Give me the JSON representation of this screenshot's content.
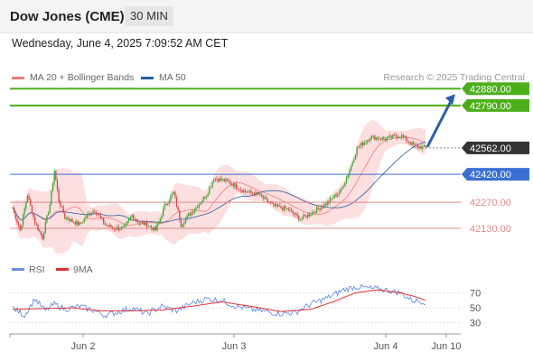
{
  "header": {
    "title": "Dow Jones (CME)",
    "timeframe": "30 MIN"
  },
  "datetime": "Wednesday, June 4, 2025 7:09:52 AM CET",
  "credit": "Research © 2025 Trading Central",
  "colors": {
    "resistance": "#4caf1a",
    "support": "#3b6fd4",
    "minor": "#e08a8a",
    "current": "#333333",
    "arrow": "#2f5fa8",
    "up_candle": "#3aa832",
    "down_candle": "#d64545"
  },
  "chart_data": [
    {
      "type": "candlestick",
      "legend": [
        {
          "name": "MA 20 + Bollinger Bands",
          "color": "#f07a7a"
        },
        {
          "name": "MA 50",
          "color": "#2b5da0"
        }
      ],
      "x_ticks": [
        "Jun 2",
        "Jun 3",
        "Jun 4",
        "Jun 10"
      ],
      "y_range": [
        41960,
        42920
      ],
      "levels": [
        {
          "value": 42880.0,
          "label": "42880.00",
          "kind": "resistance"
        },
        {
          "value": 42790.0,
          "label": "42790.00",
          "kind": "resistance"
        },
        {
          "value": 42562.0,
          "label": "42562.00",
          "kind": "current"
        },
        {
          "value": 42420.0,
          "label": "42420.00",
          "kind": "support"
        },
        {
          "value": 42270.0,
          "label": "42270.00",
          "kind": "minor"
        },
        {
          "value": 42130.0,
          "label": "42130.00",
          "kind": "minor"
        }
      ],
      "price_anchors": [
        [
          0,
          42240
        ],
        [
          5,
          42120
        ],
        [
          10,
          42310
        ],
        [
          15,
          42160
        ],
        [
          20,
          42080
        ],
        [
          25,
          42260
        ],
        [
          28,
          42440
        ],
        [
          31,
          42280
        ],
        [
          35,
          42190
        ],
        [
          40,
          42170
        ],
        [
          45,
          42150
        ],
        [
          50,
          42200
        ],
        [
          55,
          42230
        ],
        [
          62,
          42150
        ],
        [
          68,
          42130
        ],
        [
          75,
          42130
        ],
        [
          80,
          42200
        ],
        [
          85,
          42160
        ],
        [
          90,
          42150
        ],
        [
          96,
          42120
        ],
        [
          102,
          42250
        ],
        [
          108,
          42320
        ],
        [
          113,
          42150
        ],
        [
          118,
          42200
        ],
        [
          125,
          42260
        ],
        [
          130,
          42310
        ],
        [
          135,
          42400
        ],
        [
          145,
          42380
        ],
        [
          155,
          42330
        ],
        [
          165,
          42310
        ],
        [
          175,
          42250
        ],
        [
          185,
          42230
        ],
        [
          193,
          42180
        ],
        [
          200,
          42210
        ],
        [
          210,
          42260
        ],
        [
          220,
          42330
        ],
        [
          225,
          42420
        ],
        [
          231,
          42560
        ],
        [
          240,
          42620
        ],
        [
          250,
          42610
        ],
        [
          260,
          42630
        ],
        [
          265,
          42600
        ],
        [
          270,
          42570
        ],
        [
          277,
          42562
        ]
      ]
    },
    {
      "type": "line",
      "legend": [
        {
          "name": "RSI",
          "color": "#6a8fe0"
        },
        {
          "name": "9MA",
          "color": "#e03030"
        }
      ],
      "y_range": [
        20,
        85
      ],
      "y_ticks": [
        70,
        50,
        30
      ],
      "rsi_anchors": [
        [
          0,
          50
        ],
        [
          8,
          40
        ],
        [
          15,
          62
        ],
        [
          22,
          46
        ],
        [
          28,
          55
        ],
        [
          35,
          48
        ],
        [
          45,
          52
        ],
        [
          55,
          46
        ],
        [
          62,
          40
        ],
        [
          70,
          44
        ],
        [
          80,
          50
        ],
        [
          90,
          42
        ],
        [
          100,
          52
        ],
        [
          110,
          46
        ],
        [
          120,
          56
        ],
        [
          130,
          62
        ],
        [
          140,
          60
        ],
        [
          150,
          52
        ],
        [
          160,
          48
        ],
        [
          170,
          45
        ],
        [
          180,
          42
        ],
        [
          190,
          44
        ],
        [
          200,
          55
        ],
        [
          212,
          64
        ],
        [
          222,
          74
        ],
        [
          230,
          78
        ],
        [
          240,
          76
        ],
        [
          250,
          74
        ],
        [
          260,
          70
        ],
        [
          268,
          60
        ],
        [
          277,
          58
        ]
      ],
      "ma9_anchors": [
        [
          0,
          48
        ],
        [
          20,
          49
        ],
        [
          40,
          50
        ],
        [
          60,
          46
        ],
        [
          80,
          46
        ],
        [
          100,
          47
        ],
        [
          120,
          52
        ],
        [
          140,
          58
        ],
        [
          160,
          52
        ],
        [
          180,
          45
        ],
        [
          200,
          48
        ],
        [
          215,
          58
        ],
        [
          230,
          70
        ],
        [
          245,
          74
        ],
        [
          260,
          70
        ],
        [
          270,
          65
        ],
        [
          277,
          60
        ]
      ]
    }
  ]
}
